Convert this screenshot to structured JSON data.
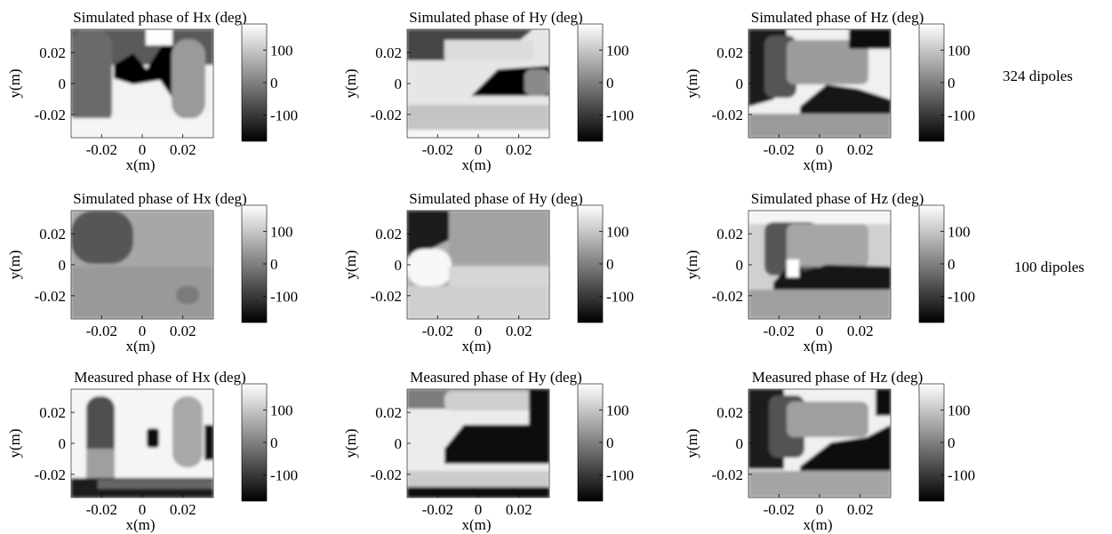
{
  "chart_data": [
    {
      "type": "heatmap",
      "title": "Simulated phase of Hx (deg)",
      "xlabel": "x(m)",
      "ylabel": "y(m)",
      "xticks": [
        "-0.02",
        "0",
        "0.02"
      ],
      "yticks": [
        "0.02",
        "0",
        "-0.02"
      ],
      "xlim": [
        -0.035,
        0.035
      ],
      "ylim": [
        -0.035,
        0.035
      ],
      "colorbar": {
        "range": [
          -180,
          180
        ],
        "ticks": [
          "100",
          "0",
          "-100"
        ]
      }
    },
    {
      "type": "heatmap",
      "title": "Simulated phase of Hy (deg)",
      "xlabel": "x(m)",
      "ylabel": "y(m)",
      "xticks": [
        "-0.02",
        "0",
        "0.02"
      ],
      "yticks": [
        "0.02",
        "0",
        "-0.02"
      ],
      "xlim": [
        -0.035,
        0.035
      ],
      "ylim": [
        -0.035,
        0.035
      ],
      "colorbar": {
        "range": [
          -180,
          180
        ],
        "ticks": [
          "100",
          "0",
          "-100"
        ]
      }
    },
    {
      "type": "heatmap",
      "title": "Simulated phase of Hz (deg)",
      "xlabel": "x(m)",
      "ylabel": "y(m)",
      "xticks": [
        "-0.02",
        "0",
        "0.02"
      ],
      "yticks": [
        "0.02",
        "0",
        "-0.02"
      ],
      "xlim": [
        -0.035,
        0.035
      ],
      "ylim": [
        -0.035,
        0.035
      ],
      "colorbar": {
        "range": [
          -180,
          180
        ],
        "ticks": [
          "100",
          "0",
          "-100"
        ]
      }
    },
    {
      "type": "heatmap",
      "title": "Simulated phase of Hx (deg)",
      "xlabel": "x(m)",
      "ylabel": "y(m)",
      "xticks": [
        "-0.02",
        "0",
        "0.02"
      ],
      "yticks": [
        "0.02",
        "0",
        "-0.02"
      ],
      "xlim": [
        -0.035,
        0.035
      ],
      "ylim": [
        -0.035,
        0.035
      ],
      "colorbar": {
        "range": [
          -180,
          180
        ],
        "ticks": [
          "100",
          "0",
          "-100"
        ]
      }
    },
    {
      "type": "heatmap",
      "title": "Simulated phase of Hy (deg)",
      "xlabel": "x(m)",
      "ylabel": "y(m)",
      "xticks": [
        "-0.02",
        "0",
        "0.02"
      ],
      "yticks": [
        "0.02",
        "0",
        "-0.02"
      ],
      "xlim": [
        -0.035,
        0.035
      ],
      "ylim": [
        -0.035,
        0.035
      ],
      "colorbar": {
        "range": [
          -180,
          180
        ],
        "ticks": [
          "100",
          "0",
          "-100"
        ]
      }
    },
    {
      "type": "heatmap",
      "title": "Simulated phase of Hz  (deg)",
      "xlabel": "x(m)",
      "ylabel": "y(m)",
      "xticks": [
        "-0.02",
        "0",
        "0.02"
      ],
      "yticks": [
        "0.02",
        "0",
        "-0.02"
      ],
      "xlim": [
        -0.035,
        0.035
      ],
      "ylim": [
        -0.035,
        0.035
      ],
      "colorbar": {
        "range": [
          -180,
          180
        ],
        "ticks": [
          "100",
          "0",
          "-100"
        ]
      }
    },
    {
      "type": "heatmap",
      "title": "Measured phase of Hx (deg)",
      "xlabel": "x(m)",
      "ylabel": "y(m)",
      "xticks": [
        "-0.02",
        "0",
        "0.02"
      ],
      "yticks": [
        "0.02",
        "0",
        "-0.02"
      ],
      "xlim": [
        -0.035,
        0.035
      ],
      "ylim": [
        -0.035,
        0.035
      ],
      "colorbar": {
        "range": [
          -180,
          180
        ],
        "ticks": [
          "100",
          "0",
          "-100"
        ]
      }
    },
    {
      "type": "heatmap",
      "title": "Measured phase of Hy (deg)",
      "xlabel": "x(m)",
      "ylabel": "y(m)",
      "xticks": [
        "-0.02",
        "0",
        "0.02"
      ],
      "yticks": [
        "0.02",
        "0",
        "-0.02"
      ],
      "xlim": [
        -0.035,
        0.035
      ],
      "ylim": [
        -0.035,
        0.035
      ],
      "colorbar": {
        "range": [
          -180,
          180
        ],
        "ticks": [
          "100",
          "0",
          "-100"
        ]
      }
    },
    {
      "type": "heatmap",
      "title": "Measured phase of Hz (deg)",
      "xlabel": "x(m)",
      "ylabel": "y(m)",
      "xticks": [
        "-0.02",
        "0",
        "0.02"
      ],
      "yticks": [
        "0.02",
        "0",
        "-0.02"
      ],
      "xlim": [
        -0.035,
        0.035
      ],
      "ylim": [
        -0.035,
        0.035
      ],
      "colorbar": {
        "range": [
          -180,
          180
        ],
        "ticks": [
          "100",
          "0",
          "-100"
        ]
      }
    }
  ],
  "row_labels": [
    "324 dipoles",
    "100 dipoles"
  ],
  "colors": {
    "colormap_low": "#000000",
    "colormap_high": "#ffffff",
    "background": "#ffffff"
  }
}
